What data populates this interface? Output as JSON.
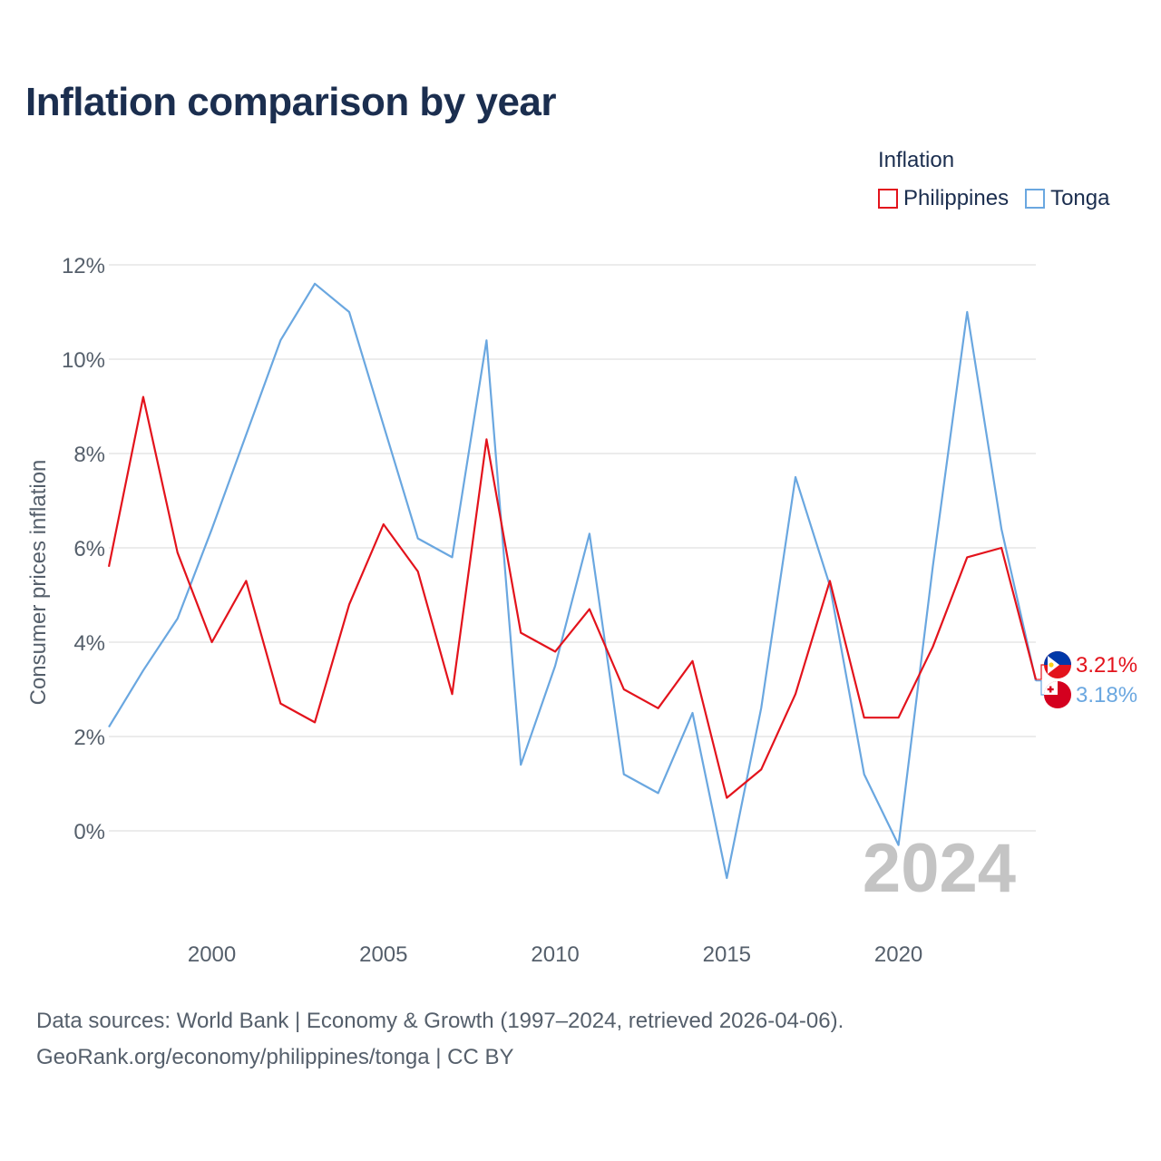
{
  "title": "Inflation comparison by year",
  "legend": {
    "title": "Inflation",
    "items": [
      {
        "label": "Philippines",
        "color": "#e3131c"
      },
      {
        "label": "Tonga",
        "color": "#6aa7e0"
      }
    ]
  },
  "footer": {
    "line1": "Data sources: World Bank | Economy & Growth (1997–2024, retrieved 2026-04-06).",
    "line2": "GeoRank.org/economy/philippines/tonga | CC BY"
  },
  "chart_data": {
    "type": "line",
    "title": "Inflation comparison by year",
    "ylabel": "Consumer prices inflation",
    "xlabel": "",
    "year_watermark": "2024",
    "x": [
      1997,
      1998,
      1999,
      2000,
      2001,
      2002,
      2003,
      2004,
      2005,
      2006,
      2007,
      2008,
      2009,
      2010,
      2011,
      2012,
      2013,
      2014,
      2015,
      2016,
      2017,
      2018,
      2019,
      2020,
      2021,
      2022,
      2023,
      2024
    ],
    "xlim": [
      1997,
      2024
    ],
    "ylim": [
      -2,
      12
    ],
    "xticks": [
      2000,
      2005,
      2010,
      2015,
      2020
    ],
    "yticks": [
      0,
      2,
      4,
      6,
      8,
      10,
      12
    ],
    "ytick_labels": [
      "0%",
      "2%",
      "4%",
      "6%",
      "8%",
      "10%",
      "12%"
    ],
    "series": [
      {
        "name": "Philippines",
        "color": "#e3131c",
        "end_label": "3.21%",
        "values": [
          5.6,
          9.2,
          5.9,
          4.0,
          5.3,
          2.7,
          2.3,
          4.8,
          6.5,
          5.5,
          2.9,
          8.3,
          4.2,
          3.8,
          4.7,
          3.0,
          2.6,
          3.6,
          0.7,
          1.3,
          2.9,
          5.3,
          2.4,
          2.4,
          3.9,
          5.8,
          6.0,
          3.21
        ]
      },
      {
        "name": "Tonga",
        "color": "#6aa7e0",
        "end_label": "3.18%",
        "values": [
          2.2,
          3.4,
          4.5,
          6.4,
          8.4,
          10.4,
          11.6,
          11.0,
          8.6,
          6.2,
          5.8,
          10.4,
          1.4,
          3.5,
          6.3,
          1.2,
          0.8,
          2.5,
          -1.0,
          2.6,
          7.5,
          5.2,
          1.2,
          -0.3,
          5.6,
          11.0,
          6.4,
          3.18
        ]
      }
    ]
  }
}
